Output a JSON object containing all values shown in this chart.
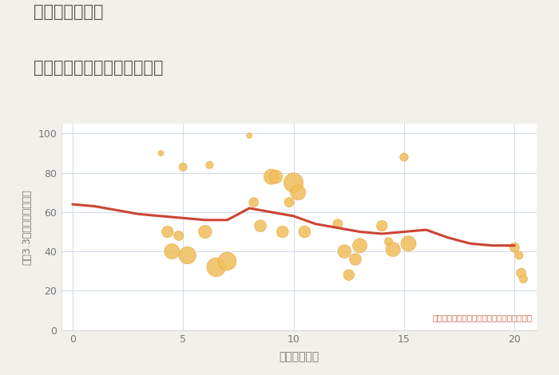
{
  "title_line1": "兵庫県手柄駅の",
  "title_line2": "駅距離別中古マンション価格",
  "xlabel": "駅距離（分）",
  "ylabel": "坪（3.3㎡）単価（万円）",
  "xlim": [
    -0.5,
    21
  ],
  "ylim": [
    0,
    105
  ],
  "xticks": [
    0,
    5,
    10,
    15,
    20
  ],
  "yticks": [
    0,
    20,
    40,
    60,
    80,
    100
  ],
  "annotation": "円の大きさは、取引のあった物件面積を示す",
  "bg_color": "#f2f0eb",
  "plot_bg_color": "#ffffff",
  "scatter_color": "#f0c060",
  "scatter_edge_color": "#e8a030",
  "line_color": "#cc4433",
  "scatter_x": [
    4.0,
    4.3,
    4.5,
    4.8,
    5.0,
    5.2,
    6.0,
    6.2,
    6.5,
    7.0,
    8.0,
    8.2,
    8.5,
    9.0,
    9.2,
    9.5,
    9.8,
    10.0,
    10.2,
    10.5,
    12.0,
    12.3,
    12.5,
    12.8,
    13.0,
    14.0,
    14.3,
    14.5,
    15.0,
    15.2,
    20.0,
    20.2,
    20.3,
    20.4
  ],
  "scatter_y": [
    90,
    50,
    40,
    48,
    83,
    38,
    50,
    84,
    32,
    35,
    99,
    65,
    53,
    78,
    78,
    50,
    65,
    75,
    70,
    50,
    54,
    40,
    28,
    36,
    43,
    53,
    45,
    41,
    88,
    44,
    42,
    38,
    29,
    26
  ],
  "scatter_size": [
    25,
    110,
    190,
    75,
    55,
    240,
    140,
    45,
    290,
    270,
    25,
    75,
    115,
    190,
    145,
    115,
    75,
    310,
    190,
    115,
    75,
    145,
    95,
    115,
    170,
    95,
    55,
    170,
    55,
    190,
    75,
    55,
    75,
    55
  ],
  "line_x": [
    0,
    1,
    2,
    3,
    4,
    5,
    6,
    7,
    8,
    9,
    10,
    11,
    12,
    13,
    14,
    15,
    16,
    17,
    18,
    19,
    20
  ],
  "line_y": [
    64,
    63,
    61,
    59,
    58,
    57,
    56,
    56,
    62,
    60,
    58,
    54,
    52,
    50,
    49,
    50,
    51,
    47,
    44,
    43,
    43
  ],
  "title_color": "#555555",
  "tick_color": "#777777",
  "grid_color": "#d0dce8",
  "annot_color": "#cc6644"
}
